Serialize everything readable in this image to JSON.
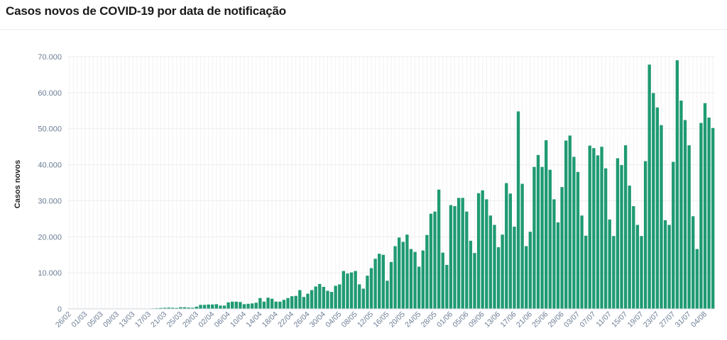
{
  "chart_data": {
    "type": "bar",
    "title": "Casos novos de COVID-19 por data de notificação",
    "ylabel": "Casos novos",
    "xlabel": "",
    "ylim": [
      0,
      70000
    ],
    "yticks": [
      "0",
      "10.000",
      "20.000",
      "30.000",
      "40.000",
      "50.000",
      "60.000",
      "70.000"
    ],
    "ytick_values": [
      0,
      10000,
      20000,
      30000,
      40000,
      50000,
      60000,
      70000
    ],
    "color": "#1f9a72",
    "grid": true,
    "xtick_every": 4,
    "categories": [
      "26/02",
      "27/02",
      "28/02",
      "29/02",
      "01/03",
      "02/03",
      "03/03",
      "04/03",
      "05/03",
      "06/03",
      "07/03",
      "08/03",
      "09/03",
      "10/03",
      "11/03",
      "12/03",
      "13/03",
      "14/03",
      "15/03",
      "16/03",
      "17/03",
      "18/03",
      "19/03",
      "20/03",
      "21/03",
      "22/03",
      "23/03",
      "24/03",
      "25/03",
      "26/03",
      "27/03",
      "28/03",
      "29/03",
      "30/03",
      "31/03",
      "01/04",
      "02/04",
      "03/04",
      "04/04",
      "05/04",
      "06/04",
      "07/04",
      "08/04",
      "09/04",
      "10/04",
      "11/04",
      "12/04",
      "13/04",
      "14/04",
      "15/04",
      "16/04",
      "17/04",
      "18/04",
      "19/04",
      "20/04",
      "21/04",
      "22/04",
      "23/04",
      "24/04",
      "25/04",
      "26/04",
      "27/04",
      "28/04",
      "29/04",
      "30/04",
      "01/05",
      "02/05",
      "03/05",
      "04/05",
      "05/05",
      "06/05",
      "07/05",
      "08/05",
      "09/05",
      "10/05",
      "11/05",
      "12/05",
      "13/05",
      "14/05",
      "15/05",
      "16/05",
      "17/05",
      "18/05",
      "19/05",
      "20/05",
      "21/05",
      "22/05",
      "23/05",
      "24/05",
      "25/05",
      "26/05",
      "27/05",
      "28/05",
      "29/05",
      "30/05",
      "31/05",
      "01/06",
      "02/06",
      "03/06",
      "04/06",
      "05/06",
      "06/06",
      "07/06",
      "08/06",
      "09/06",
      "10/06",
      "11/06",
      "12/06",
      "13/06",
      "14/06",
      "15/06",
      "16/06",
      "17/06",
      "18/06",
      "19/06",
      "20/06",
      "21/06",
      "22/06",
      "23/06",
      "24/06",
      "25/06",
      "26/06",
      "27/06",
      "28/06",
      "29/06",
      "30/06",
      "01/07",
      "02/07",
      "03/07",
      "04/07",
      "05/07",
      "06/07",
      "07/07",
      "08/07",
      "09/07",
      "10/07",
      "11/07",
      "12/07",
      "13/07",
      "14/07",
      "15/07",
      "16/07",
      "17/07",
      "18/07",
      "19/07",
      "20/07",
      "21/07",
      "22/07",
      "23/07",
      "24/07",
      "25/07",
      "26/07",
      "27/07",
      "28/07",
      "29/07",
      "30/07",
      "31/07",
      "01/08",
      "02/08",
      "03/08",
      "04/08",
      "05/08",
      "06/08"
    ],
    "values": [
      1,
      0,
      0,
      1,
      0,
      0,
      0,
      1,
      1,
      3,
      5,
      5,
      12,
      14,
      30,
      40,
      50,
      60,
      70,
      90,
      100,
      130,
      180,
      250,
      300,
      350,
      300,
      250,
      450,
      450,
      350,
      300,
      600,
      1100,
      1100,
      1200,
      1200,
      1300,
      900,
      900,
      1800,
      2000,
      2000,
      1900,
      1300,
      1400,
      1500,
      1700,
      3000,
      2000,
      3100,
      2800,
      2000,
      2000,
      2500,
      3000,
      3500,
      3600,
      5200,
      3300,
      4200,
      5200,
      6200,
      6900,
      6100,
      5000,
      4700,
      6400,
      6800,
      10500,
      9800,
      10100,
      10500,
      6800,
      5600,
      9200,
      11300,
      13900,
      15300,
      15000,
      7800,
      13000,
      17400,
      19800,
      18600,
      20600,
      16600,
      15800,
      11700,
      16200,
      20500,
      26400,
      27000,
      33100,
      15600,
      12200,
      28800,
      28500,
      30800,
      30800,
      27000,
      18900,
      15500,
      32100,
      32900,
      30400,
      25900,
      23300,
      17100,
      20600,
      34900,
      32000,
      22800,
      54800,
      34700,
      17400,
      21400,
      39400,
      42700,
      39400,
      46800,
      38600,
      30400,
      24000,
      33800,
      46700,
      48100,
      42200,
      38000,
      25900,
      20300,
      45300,
      44600,
      42600,
      45000,
      39000,
      24800,
      20200,
      41800,
      39900,
      45400,
      34200,
      28500,
      23300,
      20200,
      41000,
      67800,
      59900,
      55900,
      51000,
      24600,
      23300,
      40800,
      69000,
      57800,
      52400,
      45400,
      25700,
      16600,
      51600,
      57100,
      53100,
      50200
    ]
  }
}
